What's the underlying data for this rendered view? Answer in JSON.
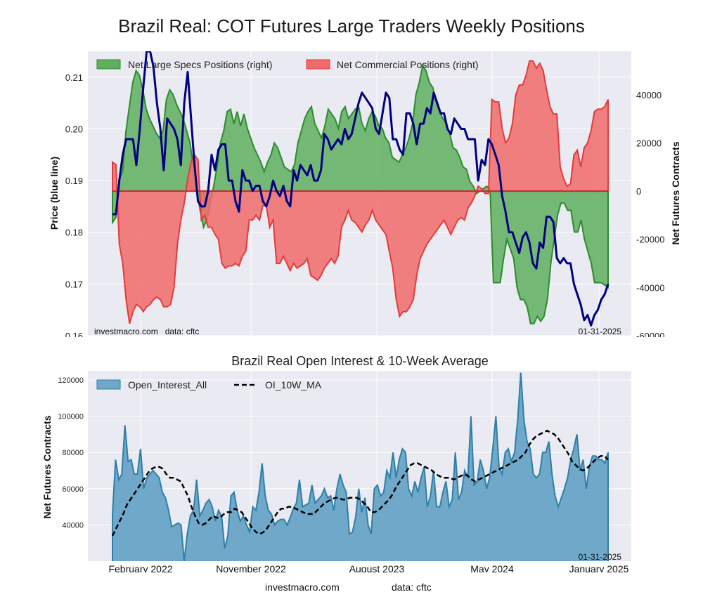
{
  "page": {
    "title": "Brazil Real: COT Futures Large Traders Weekly Positions",
    "footer_site": "investmacro.com",
    "footer_data": "data: cftc"
  },
  "colors": {
    "plot_bg": "#EAEAF2",
    "grid": "#FFFFFF",
    "price_line": "#000080",
    "specs_fill": "#5FAF5F",
    "specs_line": "#2E8B2E",
    "comm_fill": "#F26B6B",
    "comm_line": "#E23B3B",
    "oi_fill": "#6FA8C8",
    "oi_line": "#2F7FA8",
    "ma_line": "#000000"
  },
  "chart_data": [
    {
      "type": "area",
      "title": "",
      "ylabel_left": "Price (blue line)",
      "ylabel_right": "Net Futures Contracts",
      "ylim_left": [
        0.16,
        0.215
      ],
      "ylim_right": [
        -60000,
        58000
      ],
      "yticks_left": [
        "0.16",
        "0.17",
        "0.18",
        "0.19",
        "0.20",
        "0.21"
      ],
      "yticks_right": [
        "-60000",
        "-40000",
        "-20000",
        "0",
        "20000",
        "40000"
      ],
      "legend": {
        "position": "top-left",
        "entries": [
          "Net Large Specs Positions (right)",
          "Net Commercial Positions (right)"
        ]
      },
      "watermark_left": "investmacro.com   data: cftc",
      "date_label": "01-31-2025",
      "grid": true,
      "x_start": "2022-01-04",
      "x_end": "2025-01-28",
      "series": [
        {
          "name": "Net Large Specs Positions (right)",
          "axis": "right",
          "values": [
            -13000,
            -11000,
            5000,
            8000,
            25000,
            35000,
            45000,
            50000,
            48000,
            42000,
            34000,
            30000,
            27000,
            24000,
            22000,
            25000,
            38000,
            42000,
            40000,
            36000,
            33000,
            30000,
            25000,
            20000,
            10000,
            0,
            -8000,
            -15000,
            -12000,
            -5000,
            2000,
            10000,
            20000,
            25000,
            33000,
            34000,
            28000,
            33000,
            27000,
            32000,
            26000,
            22000,
            18000,
            15000,
            12000,
            8000,
            12000,
            15000,
            20000,
            18000,
            14000,
            10000,
            9000,
            8000,
            11000,
            20000,
            25000,
            30000,
            33000,
            35000,
            28000,
            25000,
            22000,
            27000,
            34000,
            32000,
            30000,
            26000,
            33000,
            35000,
            30000,
            32000,
            34000,
            35000,
            28000,
            25000,
            30000,
            33000,
            31000,
            27000,
            26000,
            22000,
            20000,
            14000,
            13000,
            12000,
            15000,
            18000,
            22000,
            28000,
            40000,
            45000,
            52000,
            50000,
            45000,
            43000,
            37000,
            33000,
            30000,
            28000,
            24000,
            18000,
            17000,
            14000,
            10000,
            9000,
            4000,
            2000,
            -1000,
            0,
            1000,
            2000,
            1000,
            -38000,
            -38000,
            -38000,
            -28000,
            -20000,
            -24000,
            -28000,
            -40000,
            -45000,
            -45000,
            -48000,
            -55000,
            -55000,
            -52000,
            -54000,
            -52000,
            -45000,
            -30000,
            -20000,
            -10000,
            -5000,
            -5000,
            -8000,
            -8000,
            -17000,
            -17000,
            -12000,
            -20000,
            -25000,
            -30000,
            -38000,
            -38000,
            -38000,
            -39000,
            -40000
          ]
        },
        {
          "name": "Net Commercial Positions (right)",
          "axis": "right",
          "values": [
            12000,
            11000,
            -22000,
            -30000,
            -45000,
            -55000,
            -50000,
            -47000,
            -48000,
            -50000,
            -48000,
            -47000,
            -45000,
            -44000,
            -45000,
            -48000,
            -48000,
            -47000,
            -40000,
            -22000,
            -12000,
            -5000,
            5000,
            12000,
            15000,
            13000,
            -12000,
            -10000,
            -15000,
            -15000,
            -18000,
            -20000,
            -30000,
            -32000,
            -31000,
            -31000,
            -30000,
            -31000,
            -27000,
            -25000,
            -12000,
            -12000,
            -10000,
            -12000,
            -6000,
            -6000,
            -15000,
            -12000,
            -30000,
            -30000,
            -27000,
            -30000,
            -33000,
            -30000,
            -32000,
            -31000,
            -30000,
            -28000,
            -35000,
            -36000,
            -37000,
            -35000,
            -32000,
            -30000,
            -28000,
            -30000,
            -27000,
            -15000,
            -12000,
            -8000,
            -12000,
            -13000,
            -15000,
            -17000,
            -14000,
            -12000,
            -8000,
            -12000,
            -14000,
            -16000,
            -18000,
            -25000,
            -32000,
            -45000,
            -52000,
            -50000,
            -50000,
            -48000,
            -45000,
            -35000,
            -28000,
            -25000,
            -22000,
            -20000,
            -18000,
            -16000,
            -14000,
            -12000,
            -15000,
            -18000,
            -15000,
            -12000,
            -11000,
            -12000,
            -7000,
            -5000,
            -2000,
            2000,
            1000,
            -1000,
            -1000,
            38000,
            37000,
            37000,
            26000,
            20000,
            22000,
            28000,
            40000,
            44000,
            44000,
            48000,
            54000,
            54000,
            51000,
            53000,
            50000,
            42000,
            35000,
            32000,
            32000,
            10000,
            5000,
            2000,
            3000,
            15000,
            17000,
            10000,
            18000,
            20000,
            25000,
            33000,
            34000,
            34000,
            35000,
            38000
          ]
        },
        {
          "name": "Price",
          "axis": "left",
          "values": [
            0.1835,
            0.1835,
            0.19,
            0.195,
            0.198,
            0.198,
            0.198,
            0.193,
            0.2,
            0.208,
            0.215,
            0.215,
            0.212,
            0.205,
            0.2,
            0.192,
            0.202,
            0.201,
            0.2,
            0.198,
            0.193,
            0.205,
            0.211,
            0.202,
            0.193,
            0.186,
            0.185,
            0.185,
            0.188,
            0.195,
            0.192,
            0.196,
            0.197,
            0.197,
            0.19,
            0.19,
            0.186,
            0.184,
            0.192,
            0.19,
            0.19,
            0.188,
            0.189,
            0.189,
            0.186,
            0.185,
            0.187,
            0.19,
            0.188,
            0.187,
            0.189,
            0.186,
            0.185,
            0.192,
            0.19,
            0.193,
            0.192,
            0.191,
            0.193,
            0.19,
            0.19,
            0.192,
            0.199,
            0.198,
            0.196,
            0.197,
            0.198,
            0.197,
            0.2,
            0.198,
            0.199,
            0.202,
            0.205,
            0.207,
            0.206,
            0.205,
            0.204,
            0.2,
            0.199,
            0.203,
            0.207,
            0.206,
            0.198,
            0.198,
            0.196,
            0.195,
            0.203,
            0.203,
            0.201,
            0.197,
            0.201,
            0.201,
            0.204,
            0.203,
            0.207,
            0.205,
            0.203,
            0.203,
            0.2,
            0.199,
            0.202,
            0.201,
            0.2,
            0.2,
            0.198,
            0.198,
            0.198,
            0.19,
            0.194,
            0.193,
            0.198,
            0.197,
            0.195,
            0.193,
            0.187,
            0.184,
            0.18,
            0.18,
            0.178,
            0.176,
            0.179,
            0.18,
            0.178,
            0.174,
            0.173,
            0.178,
            0.177,
            0.183,
            0.183,
            0.182,
            0.175,
            0.174,
            0.175,
            0.174,
            0.174,
            0.17,
            0.168,
            0.166,
            0.163,
            0.164,
            0.162,
            0.164,
            0.165,
            0.167,
            0.168,
            0.17
          ]
        }
      ]
    },
    {
      "type": "area",
      "title": "Brazil Real Open Interest & 10-Week Average",
      "ylabel": "Net Futures Contracts",
      "ylim": [
        20000,
        125000
      ],
      "yticks": [
        "40000",
        "60000",
        "80000",
        "100000",
        "120000"
      ],
      "xticks": [
        "February 2022",
        "November 2022",
        "August 2023",
        "May 2024",
        "January 2025"
      ],
      "legend": {
        "position": "top-left",
        "entries": [
          "Open_Interest_All",
          "OI_10W_MA"
        ]
      },
      "date_label": "01-31-2025",
      "grid": true,
      "x_start": "2022-01-04",
      "x_end": "2025-01-28",
      "series": [
        {
          "name": "Open_Interest_All",
          "values": [
            46000,
            76000,
            65000,
            68000,
            95000,
            75000,
            76000,
            68000,
            68000,
            82000,
            60000,
            66000,
            68000,
            70000,
            68000,
            66000,
            58000,
            55000,
            48000,
            39000,
            40000,
            41000,
            40000,
            20000,
            35000,
            45000,
            48000,
            65000,
            45000,
            48000,
            52000,
            54000,
            50000,
            42000,
            48000,
            45000,
            27000,
            34000,
            56000,
            58000,
            48000,
            42000,
            45000,
            40000,
            36000,
            50000,
            48000,
            58000,
            74000,
            56000,
            48000,
            46000,
            40000,
            42000,
            43000,
            43000,
            40000,
            44000,
            49000,
            52000,
            65000,
            50000,
            51000,
            52000,
            62000,
            52000,
            54000,
            56000,
            60000,
            55000,
            56000,
            48000,
            60000,
            68000,
            62000,
            58000,
            35000,
            36000,
            44000,
            60000,
            47000,
            55000,
            40000,
            35000,
            60000,
            62000,
            56000,
            58000,
            70000,
            66000,
            80000,
            66000,
            76000,
            82000,
            80000,
            60000,
            56000,
            64000,
            58000,
            66000,
            72000,
            50000,
            56000,
            70000,
            50000,
            50000,
            58000,
            64000,
            50000,
            54000,
            80000,
            54000,
            58000,
            70000,
            66000,
            100000,
            62000,
            64000,
            76000,
            70000,
            60000,
            66000,
            82000,
            100000,
            72000,
            68000,
            80000,
            82000,
            75000,
            80000,
            98000,
            124000,
            98000,
            86000,
            82000,
            68000,
            66000,
            68000,
            80000,
            80000,
            86000,
            68000,
            56000,
            50000,
            55000,
            60000,
            66000,
            76000,
            82000,
            90000,
            70000,
            76000,
            60000,
            72000,
            78000,
            78000,
            76000,
            76000,
            74000,
            80000
          ]
        },
        {
          "name": "OI_10W_MA",
          "values": [
            34000,
            38000,
            42000,
            46000,
            51000,
            54000,
            57000,
            60000,
            63000,
            66000,
            69000,
            71000,
            72000,
            72000,
            71000,
            68000,
            66000,
            66000,
            65000,
            64000,
            60000,
            56000,
            50000,
            45000,
            41000,
            40000,
            41000,
            43000,
            45000,
            44000,
            44000,
            46000,
            47000,
            47000,
            49000,
            48000,
            47000,
            44000,
            41000,
            38000,
            36000,
            35000,
            36000,
            38000,
            41000,
            44000,
            47000,
            49000,
            49000,
            50000,
            50000,
            49000,
            48000,
            47000,
            46000,
            46000,
            46000,
            48000,
            50000,
            52000,
            53000,
            54000,
            55000,
            55000,
            54000,
            54000,
            55000,
            55000,
            55000,
            54000,
            52000,
            50000,
            47000,
            47000,
            48000,
            50000,
            52000,
            54000,
            57000,
            61000,
            64000,
            67000,
            70000,
            73000,
            74000,
            74000,
            73000,
            72000,
            71000,
            70000,
            68000,
            67000,
            66000,
            66000,
            66000,
            65000,
            66000,
            67000,
            68000,
            67000,
            65000,
            64000,
            65000,
            66000,
            67000,
            68000,
            69000,
            70000,
            71000,
            72000,
            73000,
            74000,
            75000,
            76000,
            78000,
            80000,
            84000,
            87000,
            89000,
            90000,
            91000,
            92000,
            91000,
            90000,
            88000,
            85000,
            82000,
            79000,
            75000,
            73000,
            71000,
            70000,
            71000,
            73000,
            75000,
            77000,
            78000,
            78000,
            76000
          ]
        }
      ]
    }
  ]
}
